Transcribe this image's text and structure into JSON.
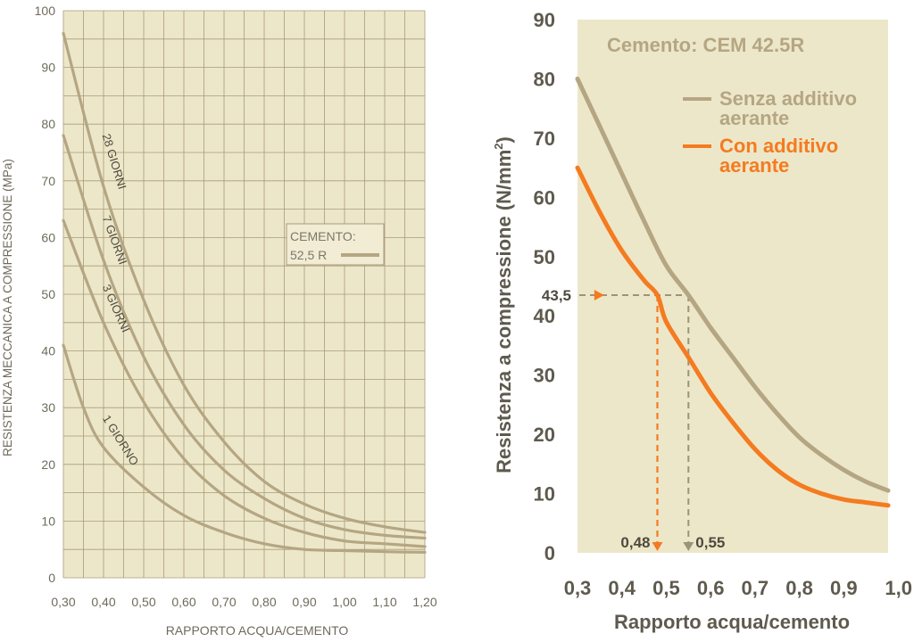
{
  "colors": {
    "panel_bg": "#EDE7C9",
    "grid": "#A79B79",
    "curve_tan": "#B5A683",
    "curve_orange": "#F47B20",
    "axis_text_left": "#6F6A5C",
    "axis_text_right": "#5E5A4E",
    "label_text": "#7C776A"
  },
  "chart_data": [
    {
      "type": "line",
      "title": "",
      "xlabel": "RAPPORTO ACQUA/CEMENTO",
      "ylabel": "RESISTENZA MECCANICA A COMPRESSIONE (MPa)",
      "xlim": [
        0.3,
        1.2
      ],
      "ylim": [
        0,
        100
      ],
      "x_tick_labels": [
        "0,30",
        "0,40",
        "0,50",
        "0,60",
        "0,70",
        "0,80",
        "0,90",
        "1,00",
        "1,10",
        "1,20"
      ],
      "y_tick_labels": [
        "0",
        "10",
        "20",
        "30",
        "40",
        "50",
        "60",
        "70",
        "80",
        "90",
        "100"
      ],
      "grid": true,
      "legend": {
        "title": "CEMENTO:",
        "entry": "52,5 R",
        "position": "center-right"
      },
      "series": [
        {
          "name": "28 GIORNI",
          "x": [
            0.3,
            0.4,
            0.5,
            0.6,
            0.7,
            0.8,
            0.9,
            1.0,
            1.1,
            1.2
          ],
          "values": [
            96,
            69,
            49,
            34,
            24,
            17,
            13,
            10.5,
            9,
            8
          ]
        },
        {
          "name": "7 GIORNI",
          "x": [
            0.3,
            0.4,
            0.5,
            0.6,
            0.7,
            0.8,
            0.9,
            1.0,
            1.1,
            1.2
          ],
          "values": [
            78,
            56,
            39,
            27,
            19,
            14,
            10.5,
            8.5,
            7.5,
            7
          ]
        },
        {
          "name": "3 GIORNI",
          "x": [
            0.3,
            0.4,
            0.5,
            0.6,
            0.7,
            0.8,
            0.9,
            1.0,
            1.1,
            1.2
          ],
          "values": [
            63,
            45,
            31,
            21,
            14.5,
            10.5,
            8,
            6.5,
            6,
            5.5
          ]
        },
        {
          "name": "1 GIORNO",
          "x": [
            0.3,
            0.35,
            0.4,
            0.5,
            0.6,
            0.7,
            0.8,
            0.9,
            1.0,
            1.1,
            1.2
          ],
          "values": [
            41,
            30,
            23,
            16,
            11,
            8,
            6,
            5,
            4.8,
            4.6,
            4.5
          ]
        }
      ]
    },
    {
      "type": "line",
      "title": "Cemento: CEM 42.5R",
      "xlabel": "Rapporto acqua/cemento",
      "ylabel": "Resistenza a compressione (N/mm",
      "ylabel_sup": "2",
      "ylabel_close": ")",
      "xlim": [
        0.3,
        1.0
      ],
      "ylim": [
        0,
        90
      ],
      "x_tick_labels": [
        "0,3",
        "0,4",
        "0,5",
        "0,6",
        "0,7",
        "0,8",
        "0,9",
        "1,0"
      ],
      "y_tick_labels": [
        "0",
        "10",
        "20",
        "30",
        "40",
        "50",
        "60",
        "70",
        "80",
        "90"
      ],
      "grid": false,
      "legend": {
        "position": "top-right",
        "entries": [
          {
            "line1": "Senza additivo",
            "line2": "aerante",
            "color": "#B5A683"
          },
          {
            "line1": "Con additivo",
            "line2": "aerante",
            "color": "#F47B20"
          }
        ]
      },
      "series": [
        {
          "name": "Senza additivo aerante",
          "x": [
            0.3,
            0.35,
            0.4,
            0.45,
            0.5,
            0.55,
            0.6,
            0.65,
            0.7,
            0.75,
            0.8,
            0.85,
            0.9,
            0.95,
            1.0
          ],
          "values": [
            80,
            72,
            64,
            56,
            48.5,
            43.5,
            38,
            33,
            28,
            23.5,
            19.5,
            16.5,
            14,
            12,
            10.5
          ]
        },
        {
          "name": "Con additivo aerante",
          "x": [
            0.3,
            0.35,
            0.4,
            0.45,
            0.48,
            0.5,
            0.55,
            0.6,
            0.65,
            0.7,
            0.75,
            0.8,
            0.85,
            0.9,
            0.95,
            1.0
          ],
          "values": [
            65,
            57.5,
            51,
            46,
            43.5,
            39,
            33,
            27,
            22,
            17.5,
            14,
            11.5,
            10,
            9,
            8.5,
            8
          ]
        }
      ],
      "annotations": {
        "y_value": 43.5,
        "y_label": "43,5",
        "x_orange": 0.48,
        "x_orange_label": "0,48",
        "x_tan": 0.55,
        "x_tan_label": "0,55"
      }
    }
  ]
}
